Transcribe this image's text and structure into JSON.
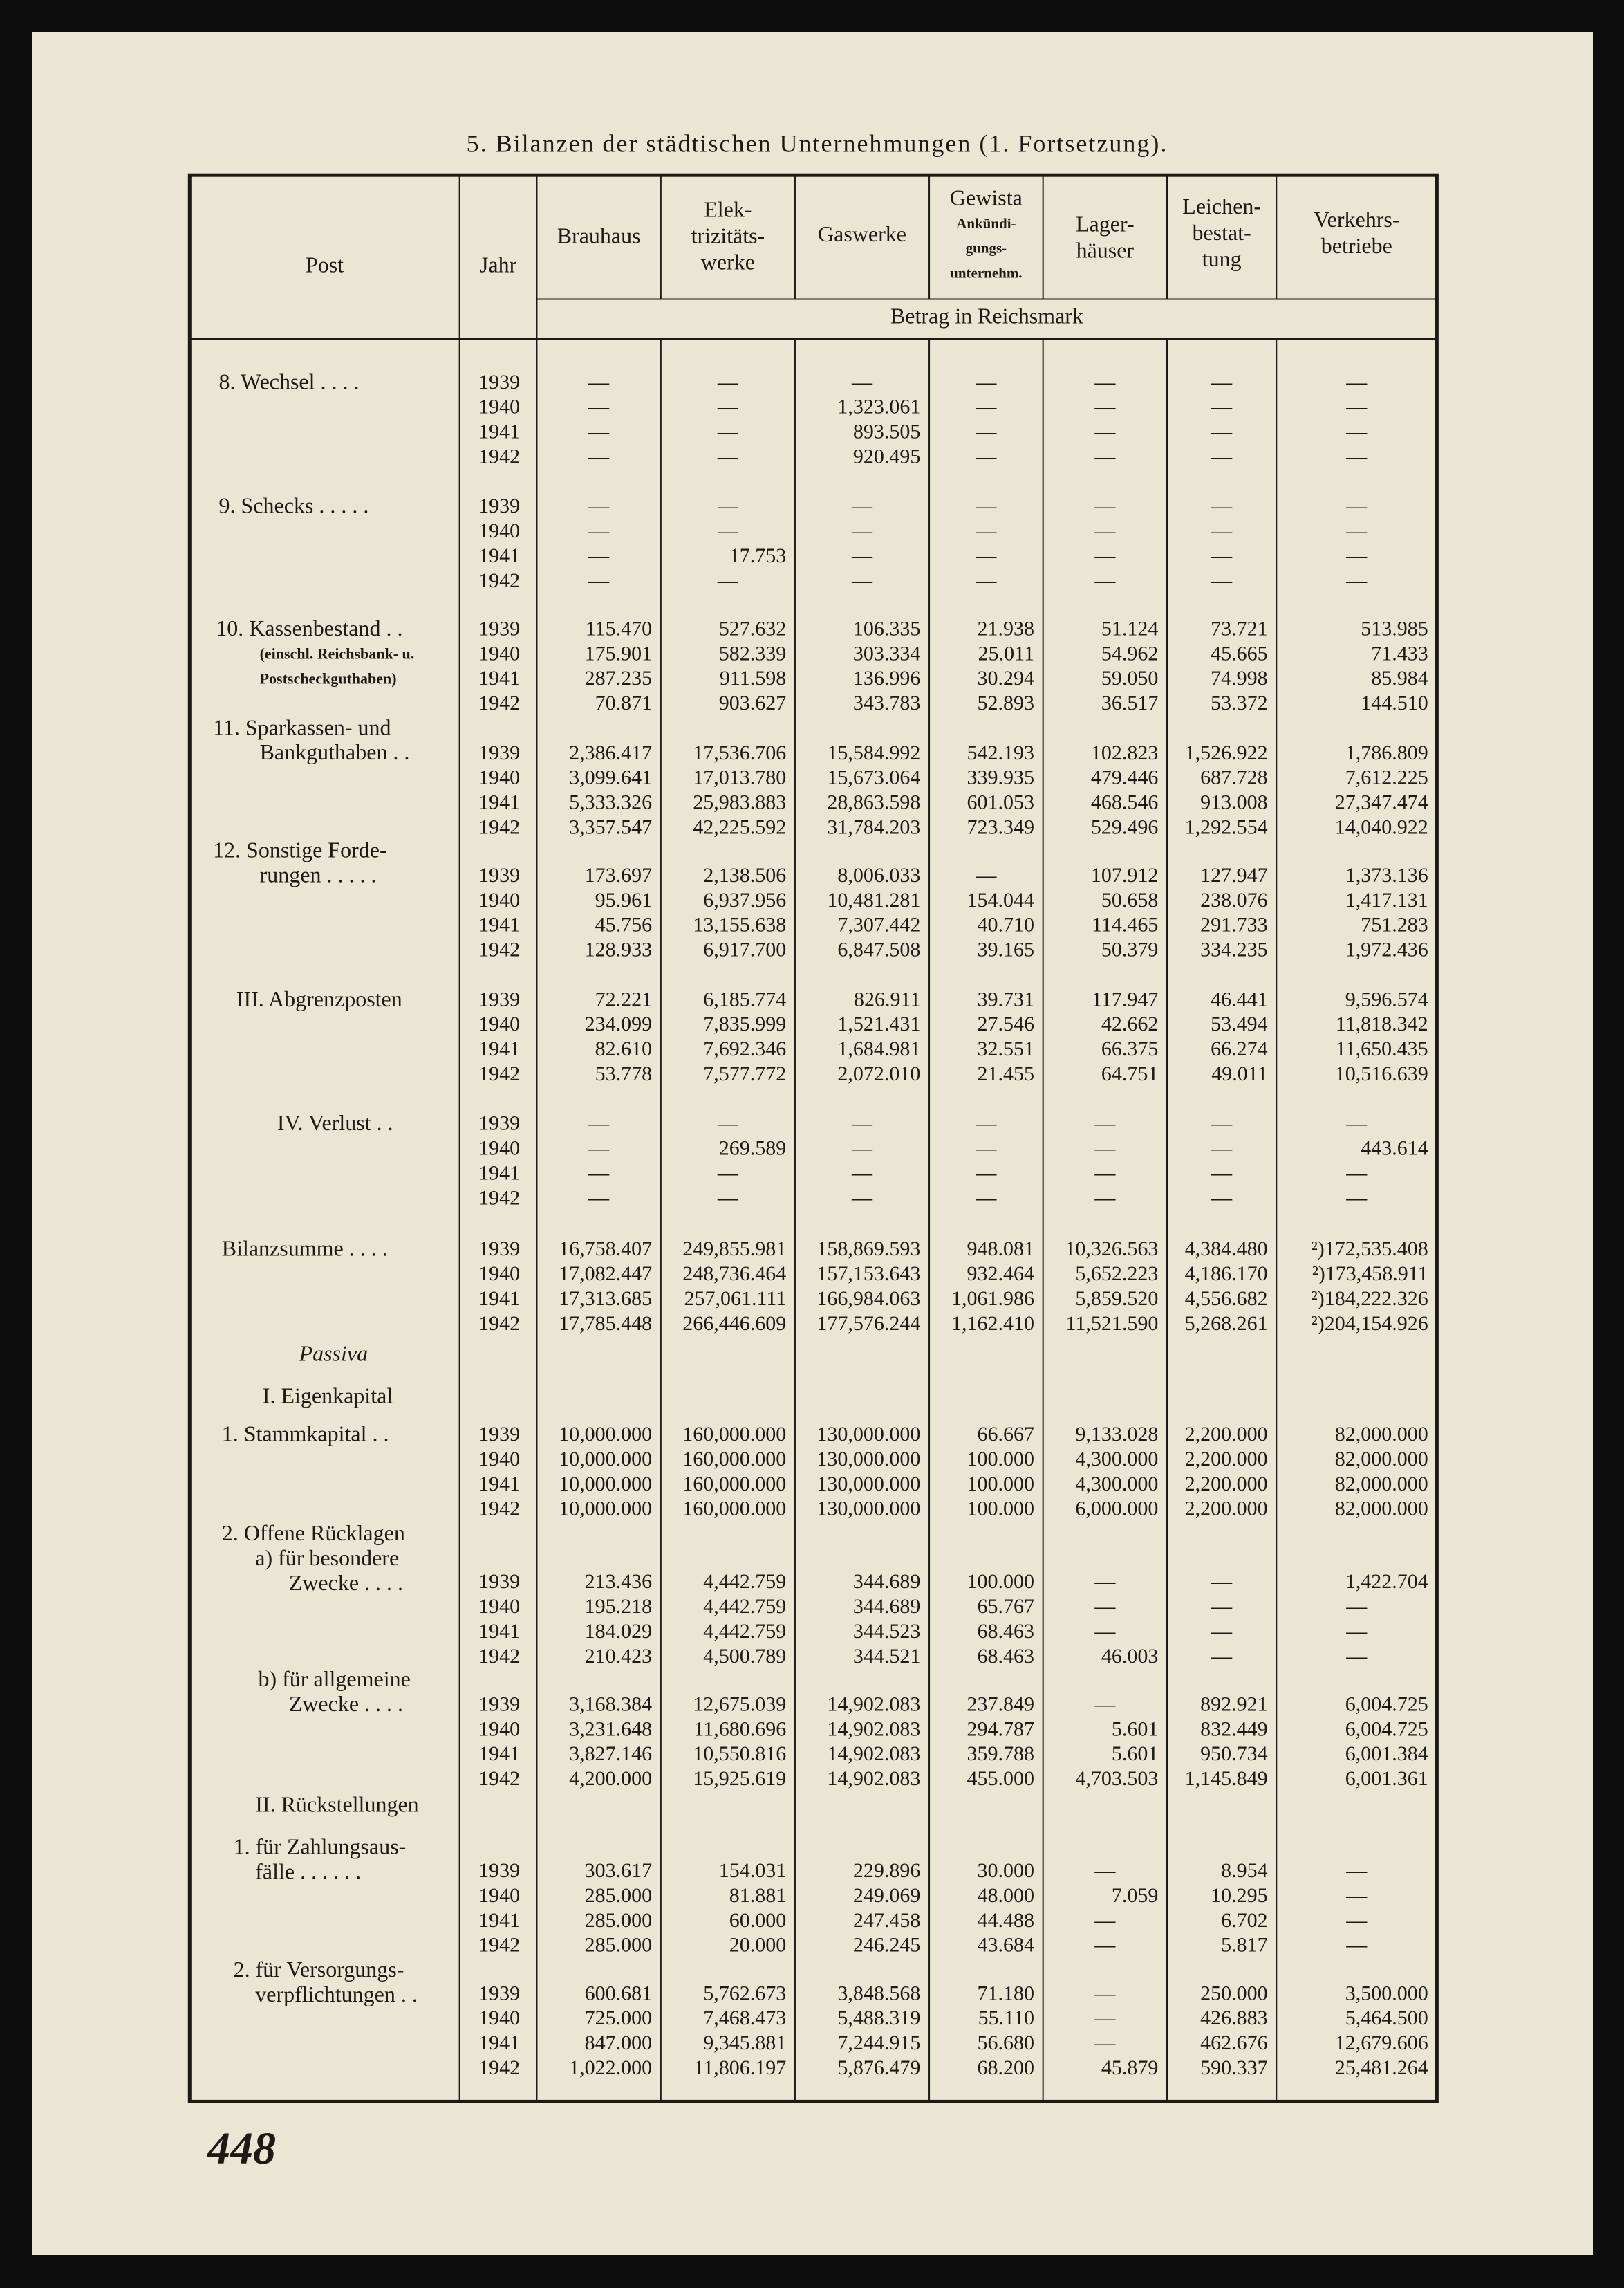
{
  "title": "5. Bilanzen der städtischen Unternehmungen (1. Fortsetzung).",
  "header": {
    "post": "Post",
    "year": "Jahr",
    "columns": [
      {
        "lines": [
          "Brauhaus"
        ]
      },
      {
        "lines": [
          "Elek-",
          "trizitäts-",
          "werke"
        ]
      },
      {
        "lines": [
          "Gaswerke"
        ]
      },
      {
        "lines": [
          "Gewista",
          "Ankündi-",
          "gungs-",
          "unternehm."
        ]
      },
      {
        "lines": [
          "Lager-",
          "häuser"
        ]
      },
      {
        "lines": [
          "Leichen-",
          "bestat-",
          "tung"
        ]
      },
      {
        "lines": [
          "Verkehrs-",
          "betriebe"
        ]
      }
    ],
    "unit": "Betrag in Reichsmark"
  },
  "sections": [
    {
      "label": [
        "8. Wechsel . . . ."
      ],
      "rows": [
        {
          "year": "1939",
          "cells": [
            "—",
            "—",
            "—",
            "—",
            "—",
            "—",
            "—"
          ]
        },
        {
          "year": "1940",
          "cells": [
            "—",
            "—",
            "1,323.061",
            "—",
            "—",
            "—",
            "—"
          ]
        },
        {
          "year": "1941",
          "cells": [
            "—",
            "—",
            "893.505",
            "—",
            "—",
            "—",
            "—"
          ]
        },
        {
          "year": "1942",
          "cells": [
            "—",
            "—",
            "920.495",
            "—",
            "—",
            "—",
            "—"
          ]
        }
      ]
    },
    {
      "label": [
        "9. Schecks . . . . ."
      ],
      "rows": [
        {
          "year": "1939",
          "cells": [
            "—",
            "—",
            "—",
            "—",
            "—",
            "—",
            "—"
          ]
        },
        {
          "year": "1940",
          "cells": [
            "—",
            "—",
            "—",
            "—",
            "—",
            "—",
            "—"
          ]
        },
        {
          "year": "1941",
          "cells": [
            "—",
            "17.753",
            "—",
            "—",
            "—",
            "—",
            "—"
          ]
        },
        {
          "year": "1942",
          "cells": [
            "—",
            "—",
            "—",
            "—",
            "—",
            "—",
            "—"
          ]
        }
      ]
    },
    {
      "label": [
        "10. Kassenbestand . .",
        "(einschl. Reichsbank- u.",
        "Postscheckguthaben)"
      ],
      "rows": [
        {
          "year": "1939",
          "cells": [
            "115.470",
            "527.632",
            "106.335",
            "21.938",
            "51.124",
            "73.721",
            "513.985"
          ]
        },
        {
          "year": "1940",
          "cells": [
            "175.901",
            "582.339",
            "303.334",
            "25.011",
            "54.962",
            "45.665",
            "71.433"
          ]
        },
        {
          "year": "1941",
          "cells": [
            "287.235",
            "911.598",
            "136.996",
            "30.294",
            "59.050",
            "74.998",
            "85.984"
          ]
        },
        {
          "year": "1942",
          "cells": [
            "70.871",
            "903.627",
            "343.783",
            "52.893",
            "36.517",
            "53.372",
            "144.510"
          ]
        }
      ]
    },
    {
      "label": [
        "11. Sparkassen- und",
        "Bankguthaben . ."
      ],
      "rows": [
        {
          "year": "1939",
          "cells": [
            "2,386.417",
            "17,536.706",
            "15,584.992",
            "542.193",
            "102.823",
            "1,526.922",
            "1,786.809"
          ]
        },
        {
          "year": "1940",
          "cells": [
            "3,099.641",
            "17,013.780",
            "15,673.064",
            "339.935",
            "479.446",
            "687.728",
            "7,612.225"
          ]
        },
        {
          "year": "1941",
          "cells": [
            "5,333.326",
            "25,983.883",
            "28,863.598",
            "601.053",
            "468.546",
            "913.008",
            "27,347.474"
          ]
        },
        {
          "year": "1942",
          "cells": [
            "3,357.547",
            "42,225.592",
            "31,784.203",
            "723.349",
            "529.496",
            "1,292.554",
            "14,040.922"
          ]
        }
      ]
    },
    {
      "label": [
        "12. Sonstige Forde-",
        "rungen . . . . ."
      ],
      "rows": [
        {
          "year": "1939",
          "cells": [
            "173.697",
            "2,138.506",
            "8,006.033",
            "—",
            "107.912",
            "127.947",
            "1,373.136"
          ]
        },
        {
          "year": "1940",
          "cells": [
            "95.961",
            "6,937.956",
            "10,481.281",
            "154.044",
            "50.658",
            "238.076",
            "1,417.131"
          ]
        },
        {
          "year": "1941",
          "cells": [
            "45.756",
            "13,155.638",
            "7,307.442",
            "40.710",
            "114.465",
            "291.733",
            "751.283"
          ]
        },
        {
          "year": "1942",
          "cells": [
            "128.933",
            "6,917.700",
            "6,847.508",
            "39.165",
            "50.379",
            "334.235",
            "1,972.436"
          ]
        }
      ]
    },
    {
      "label": [
        "III. Abgrenzposten"
      ],
      "rows": [
        {
          "year": "1939",
          "cells": [
            "72.221",
            "6,185.774",
            "826.911",
            "39.731",
            "117.947",
            "46.441",
            "9,596.574"
          ]
        },
        {
          "year": "1940",
          "cells": [
            "234.099",
            "7,835.999",
            "1,521.431",
            "27.546",
            "42.662",
            "53.494",
            "11,818.342"
          ]
        },
        {
          "year": "1941",
          "cells": [
            "82.610",
            "7,692.346",
            "1,684.981",
            "32.551",
            "66.375",
            "66.274",
            "11,650.435"
          ]
        },
        {
          "year": "1942",
          "cells": [
            "53.778",
            "7,577.772",
            "2,072.010",
            "21.455",
            "64.751",
            "49.011",
            "10,516.639"
          ]
        }
      ]
    },
    {
      "label": [
        "IV. Verlust . ."
      ],
      "rows": [
        {
          "year": "1939",
          "cells": [
            "—",
            "—",
            "—",
            "—",
            "—",
            "—",
            "—"
          ]
        },
        {
          "year": "1940",
          "cells": [
            "—",
            "269.589",
            "—",
            "—",
            "—",
            "—",
            "443.614"
          ]
        },
        {
          "year": "1941",
          "cells": [
            "—",
            "—",
            "—",
            "—",
            "—",
            "—",
            "—"
          ]
        },
        {
          "year": "1942",
          "cells": [
            "—",
            "—",
            "—",
            "—",
            "—",
            "—",
            "—"
          ]
        }
      ]
    },
    {
      "label": [
        "Bilanzsumme . . . ."
      ],
      "rows": [
        {
          "year": "1939",
          "cells": [
            "16,758.407",
            "249,855.981",
            "158,869.593",
            "948.081",
            "10,326.563",
            "4,384.480",
            "²)172,535.408"
          ]
        },
        {
          "year": "1940",
          "cells": [
            "17,082.447",
            "248,736.464",
            "157,153.643",
            "932.464",
            "5,652.223",
            "4,186.170",
            "²)173,458.911"
          ]
        },
        {
          "year": "1941",
          "cells": [
            "17,313.685",
            "257,061.111",
            "166,984.063",
            "1,061.986",
            "5,859.520",
            "4,556.682",
            "²)184,222.326"
          ]
        },
        {
          "year": "1942",
          "cells": [
            "17,785.448",
            "266,446.609",
            "177,576.244",
            "1,162.410",
            "11,521.590",
            "5,268.261",
            "²)204,154.926"
          ]
        }
      ]
    },
    {
      "heading": "Passiva"
    },
    {
      "heading": "I. Eigenkapital"
    },
    {
      "label": [
        "1. Stammkapital . ."
      ],
      "rows": [
        {
          "year": "1939",
          "cells": [
            "10,000.000",
            "160,000.000",
            "130,000.000",
            "66.667",
            "9,133.028",
            "2,200.000",
            "82,000.000"
          ]
        },
        {
          "year": "1940",
          "cells": [
            "10,000.000",
            "160,000.000",
            "130,000.000",
            "100.000",
            "4,300.000",
            "2,200.000",
            "82,000.000"
          ]
        },
        {
          "year": "1941",
          "cells": [
            "10,000.000",
            "160,000.000",
            "130,000.000",
            "100.000",
            "4,300.000",
            "2,200.000",
            "82,000.000"
          ]
        },
        {
          "year": "1942",
          "cells": [
            "10,000.000",
            "160,000.000",
            "130,000.000",
            "100.000",
            "6,000.000",
            "2,200.000",
            "82,000.000"
          ]
        }
      ]
    },
    {
      "label": [
        "2. Offene Rücklagen",
        "a) für besondere",
        "Zwecke . . . ."
      ],
      "rows": [
        {
          "year": "1939",
          "cells": [
            "213.436",
            "4,442.759",
            "344.689",
            "100.000",
            "—",
            "—",
            "1,422.704"
          ]
        },
        {
          "year": "1940",
          "cells": [
            "195.218",
            "4,442.759",
            "344.689",
            "65.767",
            "—",
            "—",
            "—"
          ]
        },
        {
          "year": "1941",
          "cells": [
            "184.029",
            "4,442.759",
            "344.523",
            "68.463",
            "—",
            "—",
            "—"
          ]
        },
        {
          "year": "1942",
          "cells": [
            "210.423",
            "4,500.789",
            "344.521",
            "68.463",
            "46.003",
            "—",
            "—"
          ]
        }
      ]
    },
    {
      "label": [
        "b) für allgemeine",
        "Zwecke . . . ."
      ],
      "rows": [
        {
          "year": "1939",
          "cells": [
            "3,168.384",
            "12,675.039",
            "14,902.083",
            "237.849",
            "—",
            "892.921",
            "6,004.725"
          ]
        },
        {
          "year": "1940",
          "cells": [
            "3,231.648",
            "11,680.696",
            "14,902.083",
            "294.787",
            "5.601",
            "832.449",
            "6,004.725"
          ]
        },
        {
          "year": "1941",
          "cells": [
            "3,827.146",
            "10,550.816",
            "14,902.083",
            "359.788",
            "5.601",
            "950.734",
            "6,001.384"
          ]
        },
        {
          "year": "1942",
          "cells": [
            "4,200.000",
            "15,925.619",
            "14,902.083",
            "455.000",
            "4,703.503",
            "1,145.849",
            "6,001.361"
          ]
        }
      ]
    },
    {
      "heading": "II. Rückstellungen"
    },
    {
      "label": [
        "1. für Zahlungsaus-",
        "fälle . . . . . ."
      ],
      "rows": [
        {
          "year": "1939",
          "cells": [
            "303.617",
            "154.031",
            "229.896",
            "30.000",
            "—",
            "8.954",
            "—"
          ]
        },
        {
          "year": "1940",
          "cells": [
            "285.000",
            "81.881",
            "249.069",
            "48.000",
            "7.059",
            "10.295",
            "—"
          ]
        },
        {
          "year": "1941",
          "cells": [
            "285.000",
            "60.000",
            "247.458",
            "44.488",
            "—",
            "6.702",
            "—"
          ]
        },
        {
          "year": "1942",
          "cells": [
            "285.000",
            "20.000",
            "246.245",
            "43.684",
            "—",
            "5.817",
            "—"
          ]
        }
      ]
    },
    {
      "label": [
        "2. für Versorgungs-",
        "verpflichtungen . ."
      ],
      "rows": [
        {
          "year": "1939",
          "cells": [
            "600.681",
            "5,762.673",
            "3,848.568",
            "71.180",
            "—",
            "250.000",
            "3,500.000"
          ]
        },
        {
          "year": "1940",
          "cells": [
            "725.000",
            "7,468.473",
            "5,488.319",
            "55.110",
            "—",
            "426.883",
            "5,464.500"
          ]
        },
        {
          "year": "1941",
          "cells": [
            "847.000",
            "9,345.881",
            "7,244.915",
            "56.680",
            "—",
            "462.676",
            "12,679.606"
          ]
        },
        {
          "year": "1942",
          "cells": [
            "1,022.000",
            "11,806.197",
            "5,876.479",
            "68.200",
            "45.879",
            "590.337",
            "25,481.264"
          ]
        }
      ]
    }
  ],
  "page_number": "448"
}
